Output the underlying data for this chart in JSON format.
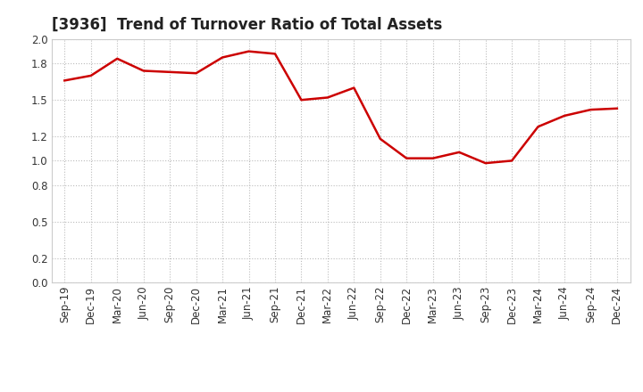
{
  "title": "[3936]  Trend of Turnover Ratio of Total Assets",
  "labels": [
    "Sep-19",
    "Dec-19",
    "Mar-20",
    "Jun-20",
    "Sep-20",
    "Dec-20",
    "Mar-21",
    "Jun-21",
    "Sep-21",
    "Dec-21",
    "Mar-22",
    "Jun-22",
    "Sep-22",
    "Dec-22",
    "Mar-23",
    "Jun-23",
    "Sep-23",
    "Dec-23",
    "Mar-24",
    "Jun-24",
    "Sep-24",
    "Dec-24"
  ],
  "values": [
    1.66,
    1.7,
    1.84,
    1.74,
    1.73,
    1.72,
    1.85,
    1.9,
    1.88,
    1.5,
    1.52,
    1.6,
    1.18,
    1.02,
    1.02,
    1.07,
    0.98,
    1.0,
    1.28,
    1.37,
    1.42,
    1.43
  ],
  "line_color": "#cc0000",
  "line_width": 1.8,
  "ylim": [
    0.0,
    2.0
  ],
  "ytick_values": [
    0.0,
    0.2,
    0.5,
    0.8,
    1.0,
    1.2,
    1.5,
    1.8,
    2.0
  ],
  "background_color": "#ffffff",
  "plot_bg_color": "#ffffff",
  "grid_color": "#bbbbbb",
  "border_color": "#cccccc",
  "title_fontsize": 12,
  "tick_fontsize": 8.5
}
